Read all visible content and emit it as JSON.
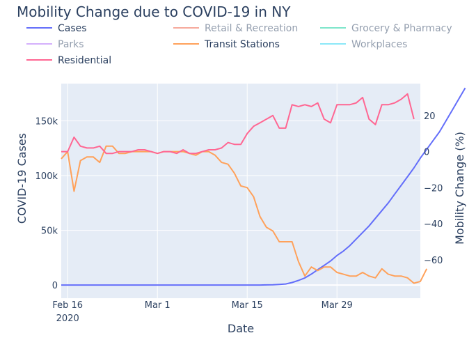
{
  "chart_data": {
    "type": "line",
    "title": "Mobility Change due to COVID-19 in NY",
    "xlabel": "Date",
    "ylabel": "COVID-19 Cases",
    "y2label": "Mobility Change (%)",
    "x_start": "2020-02-15",
    "xlim": [
      "2020-02-15",
      "2020-04-11"
    ],
    "ylim": [
      -12000,
      184000
    ],
    "y2lim": [
      -81.3,
      37.7
    ],
    "x_ticks": [
      {
        "date": "2020-02-16",
        "label": "Feb 16",
        "sublabel": "2020"
      },
      {
        "date": "2020-03-01",
        "label": "Mar 1",
        "sublabel": ""
      },
      {
        "date": "2020-03-15",
        "label": "Mar 15",
        "sublabel": ""
      },
      {
        "date": "2020-03-29",
        "label": "Mar 29",
        "sublabel": ""
      }
    ],
    "y_ticks": [
      {
        "value": 0,
        "label": "0"
      },
      {
        "value": 50000,
        "label": "50k"
      },
      {
        "value": 100000,
        "label": "100k"
      },
      {
        "value": 150000,
        "label": "150k"
      }
    ],
    "y2_ticks": [
      {
        "value": 20,
        "label": "20"
      },
      {
        "value": 0,
        "label": "0"
      },
      {
        "value": -20,
        "label": "−20"
      },
      {
        "value": -40,
        "label": "−40"
      },
      {
        "value": -60,
        "label": "−60"
      }
    ],
    "legend_position": "top",
    "grid": true,
    "series": [
      {
        "name": "Cases",
        "axis": "y",
        "color": "#636efa",
        "visible": true,
        "values": [
          0,
          0,
          0,
          0,
          0,
          0,
          0,
          0,
          0,
          0,
          0,
          0,
          0,
          0,
          0,
          0,
          0,
          0,
          0,
          0,
          0,
          0,
          0,
          0,
          0,
          0,
          0,
          0,
          1,
          1,
          10,
          50,
          150,
          250,
          550,
          1000,
          2300,
          4200,
          6500,
          10000,
          14000,
          18000,
          22000,
          27000,
          31000,
          36000,
          42000,
          48000,
          54000,
          61000,
          68000,
          75000,
          83000,
          91000,
          99000,
          107000,
          116000,
          124000,
          132000,
          140000,
          150000,
          160000,
          170000,
          180000
        ]
      },
      {
        "name": "Retail & Recreation",
        "axis": "y2",
        "color": "#ef553b",
        "visible": false,
        "values": []
      },
      {
        "name": "Grocery & Pharmacy",
        "axis": "y2",
        "color": "#00cc96",
        "visible": false,
        "values": []
      },
      {
        "name": "Parks",
        "axis": "y2",
        "color": "#ab63fa",
        "visible": false,
        "values": []
      },
      {
        "name": "Transit Stations",
        "axis": "y2",
        "color": "#ffa15a",
        "visible": true,
        "values": [
          -4,
          0,
          -22,
          -5,
          -3,
          -3,
          -6,
          3,
          3,
          -1,
          -1,
          0,
          0,
          0,
          0,
          -1,
          0,
          0,
          0,
          0,
          -1,
          -2,
          0,
          0,
          -2,
          -6,
          -7,
          -12,
          -19,
          -20,
          -25,
          -36,
          -42,
          -44,
          -50,
          -50,
          -50,
          -61,
          -69,
          -64,
          -66,
          -64,
          -64,
          -67,
          -68,
          -69,
          -69,
          -67,
          -69,
          -70,
          -65,
          -68,
          -69,
          -69,
          -70,
          -73,
          -72,
          -65
        ]
      },
      {
        "name": "Workplaces",
        "axis": "y2",
        "color": "#19d3f3",
        "visible": false,
        "values": []
      },
      {
        "name": "Residential",
        "axis": "y2",
        "color": "#ff6692",
        "visible": true,
        "values": [
          0,
          0,
          8,
          3,
          2,
          2,
          3,
          -1,
          -1,
          0,
          0,
          0,
          1,
          1,
          0,
          -1,
          0,
          0,
          -1,
          1,
          -1,
          -1,
          0,
          1,
          1,
          2,
          5,
          4,
          4,
          10,
          14,
          16,
          18,
          20,
          13,
          13,
          26,
          25,
          26,
          25,
          27,
          18,
          16,
          26,
          26,
          26,
          27,
          30,
          18,
          15,
          26,
          26,
          27,
          29,
          32,
          18
        ]
      }
    ]
  }
}
